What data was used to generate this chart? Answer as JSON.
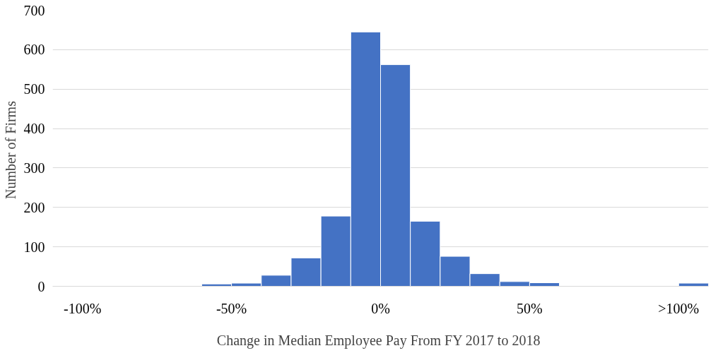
{
  "chart_data": {
    "type": "histogram",
    "xlabel": "Change  in Median Employee Pay From FY 2017 to 2018",
    "ylabel": "Number  of Firms",
    "bins": [
      -110,
      -100,
      -90,
      -80,
      -70,
      -60,
      -50,
      -40,
      -30,
      -20,
      -10,
      0,
      10,
      20,
      30,
      40,
      50,
      60,
      70,
      80,
      90,
      100,
      110
    ],
    "values": [
      0,
      0,
      0,
      0,
      0,
      6,
      8,
      28,
      72,
      178,
      645,
      562,
      165,
      76,
      32,
      12,
      9,
      0,
      0,
      0,
      0,
      8
    ],
    "color": "#4472c4",
    "xlim": [
      -110,
      110
    ],
    "xticks": [
      {
        "value": -100,
        "label": "-100%"
      },
      {
        "value": -50,
        "label": "-50%"
      },
      {
        "value": 0,
        "label": "0%"
      },
      {
        "value": 50,
        "label": "50%"
      },
      {
        "value": 100,
        "label": ">100%"
      }
    ],
    "ylim": [
      0,
      700
    ],
    "yticks": [
      0,
      100,
      200,
      300,
      400,
      500,
      600,
      700
    ],
    "grid": "y"
  }
}
